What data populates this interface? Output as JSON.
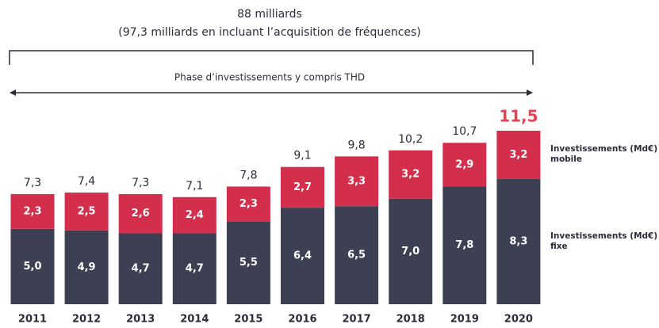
{
  "chart_data": {
    "type": "stacked_bar",
    "title": "88 milliards",
    "subtitle": "(97,3 milliards en incluant l’acquisition de fréquences)",
    "annotation": "Phase d’investissements y compris THD",
    "categories": [
      "2011",
      "2012",
      "2013",
      "2014",
      "2015",
      "2016",
      "2017",
      "2018",
      "2019",
      "2020"
    ],
    "series": [
      {
        "name": "Investissements (Md€) fixe",
        "color": "#3d3f52",
        "values": [
          5.0,
          4.9,
          4.7,
          4.7,
          5.5,
          6.4,
          6.5,
          7.0,
          7.8,
          8.3
        ],
        "value_labels": [
          "5,0",
          "4,9",
          "4,7",
          "4,7",
          "5,5",
          "6,4",
          "6,5",
          "7,0",
          "7,8",
          "8,3"
        ]
      },
      {
        "name": "Investissements (Md€) mobile",
        "color": "#d32f4d",
        "values": [
          2.3,
          2.5,
          2.6,
          2.4,
          2.3,
          2.7,
          3.3,
          3.2,
          2.9,
          3.2
        ],
        "value_labels": [
          "2,3",
          "2,5",
          "2,6",
          "2,4",
          "2,3",
          "2,7",
          "3,3",
          "3,2",
          "2,9",
          "3,2"
        ]
      }
    ],
    "totals": {
      "values": [
        7.3,
        7.4,
        7.3,
        7.1,
        7.8,
        9.1,
        9.8,
        10.2,
        10.7,
        11.5
      ],
      "value_labels": [
        "7,3",
        "7,4",
        "7,3",
        "7,1",
        "7,8",
        "9,1",
        "9,8",
        "10,2",
        "10,7",
        "11,5"
      ],
      "highlight_color": "#e8414f"
    }
  }
}
